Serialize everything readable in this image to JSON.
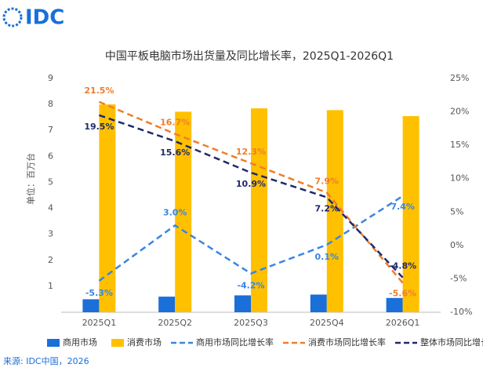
{
  "logo": "IDC",
  "chart_data": {
    "type": "bar",
    "title": "中国平板电脑市场出货量及同比增长率，2025Q1-2026Q1",
    "y_label": "单位：百万台",
    "source": "来源: IDC中国，2026",
    "categories": [
      "2025Q1",
      "2025Q2",
      "2025Q3",
      "2025Q4",
      "2026Q1"
    ],
    "series": [
      {
        "name": "商用市场",
        "type": "bar",
        "color": "#1a6fd8",
        "values": [
          0.5,
          0.6,
          0.65,
          0.68,
          0.55
        ]
      },
      {
        "name": "消费市场",
        "type": "bar",
        "color": "#ffc000",
        "values": [
          8.0,
          7.72,
          7.85,
          7.78,
          7.55
        ]
      },
      {
        "name": "商用市场同比增长率",
        "type": "line",
        "axis": "y2",
        "color": "#3a86e0",
        "values": [
          -5.3,
          3.0,
          -4.2,
          0.1,
          7.4
        ],
        "value_labels": [
          "-5.3%",
          "3.0%",
          "-4.2%",
          "0.1%",
          "7.4%"
        ]
      },
      {
        "name": "消费市场同比增长率",
        "type": "line",
        "axis": "y2",
        "color": "#f07d2a",
        "values": [
          21.5,
          16.7,
          12.3,
          7.9,
          -5.6
        ],
        "value_labels": [
          "21.5%",
          "16.7%",
          "12.3%",
          "7.9%",
          "-5.6%"
        ]
      },
      {
        "name": "整体市场同比增长率",
        "type": "line",
        "axis": "y2",
        "color": "#1f2a6b",
        "values": [
          19.5,
          15.6,
          10.9,
          7.2,
          -4.8
        ],
        "value_labels": [
          "19.5%",
          "15.6%",
          "10.9%",
          "7.2%",
          "-4.8%"
        ]
      }
    ],
    "ylim": [
      0,
      9
    ],
    "yticks": [
      1,
      2,
      3,
      4,
      5,
      6,
      7,
      8,
      9
    ],
    "y2lim": [
      -10,
      25
    ],
    "y2ticks": [
      {
        "value": -10,
        "label": "-10%"
      },
      {
        "value": -5,
        "label": "-5%"
      },
      {
        "value": 0,
        "label": "0%"
      },
      {
        "value": 5,
        "label": "5%"
      },
      {
        "value": 10,
        "label": "10%"
      },
      {
        "value": 15,
        "label": "15%"
      },
      {
        "value": 20,
        "label": "20%"
      },
      {
        "value": 25,
        "label": "25%"
      }
    ],
    "grid": false,
    "legend": "bottom"
  }
}
